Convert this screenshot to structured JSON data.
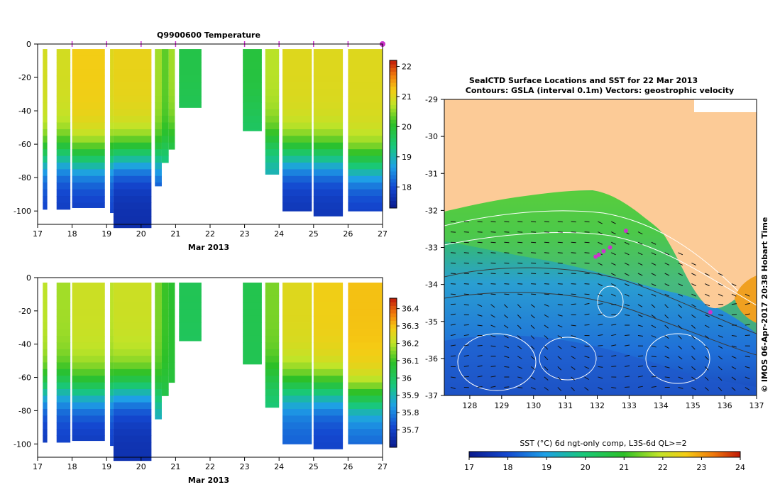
{
  "chart_data": [
    {
      "type": "heatmap",
      "title": "Q9900600  Temperature",
      "xlabel": "Mar 2013",
      "ylabel": "",
      "xlim": [
        17,
        27
      ],
      "ylim": [
        -108,
        0
      ],
      "x_ticks": [
        "17",
        "18",
        "19",
        "20",
        "21",
        "22",
        "23",
        "24",
        "25",
        "26",
        "27"
      ],
      "y_ticks": [
        "0",
        "-20",
        "-40",
        "-60",
        "-80",
        "-100"
      ],
      "colorbar": {
        "min": 17.3,
        "max": 22.2,
        "ticks": [
          "18",
          "19",
          "20",
          "21",
          "22"
        ],
        "tick_values": [
          18,
          19,
          20,
          21,
          22
        ]
      },
      "markers_x": [
        18.0,
        19.0,
        20.0,
        21.0,
        23.0,
        24.0,
        25.0,
        26.0,
        27.0
      ],
      "profiles": [
        {
          "x0": 17.15,
          "x1": 17.28,
          "depth": 96,
          "surface": 20.9,
          "bottom": 17.9,
          "thermo": 63
        },
        {
          "x0": 17.55,
          "x1": 17.95,
          "depth": 96,
          "surface": 20.9,
          "bottom": 17.8,
          "thermo": 62
        },
        {
          "x0": 18.0,
          "x1": 18.95,
          "depth": 95,
          "surface": 21.2,
          "bottom": 17.8,
          "thermo": 64
        },
        {
          "x0": 19.1,
          "x1": 19.2,
          "depth": 98,
          "surface": 21.0,
          "bottom": 17.9,
          "thermo": 63
        },
        {
          "x0": 19.2,
          "x1": 20.3,
          "depth": 107,
          "surface": 21.1,
          "bottom": 17.6,
          "thermo": 62
        },
        {
          "x0": 20.4,
          "x1": 20.6,
          "depth": 82,
          "surface": 20.6,
          "bottom": 17.9,
          "thermo": 64
        },
        {
          "x0": 20.6,
          "x1": 20.8,
          "depth": 68,
          "surface": 20.3,
          "bottom": 18.8,
          "thermo": 60
        },
        {
          "x0": 20.8,
          "x1": 20.98,
          "depth": 60,
          "surface": 20.6,
          "bottom": 19.5,
          "thermo": 50
        },
        {
          "x0": 21.1,
          "x1": 21.75,
          "depth": 35,
          "surface": 19.8,
          "bottom": 19.6,
          "thermo": 30
        },
        {
          "x0": 22.95,
          "x1": 23.5,
          "depth": 49,
          "surface": 19.9,
          "bottom": 19.5,
          "thermo": 35
        },
        {
          "x0": 23.6,
          "x1": 24.0,
          "depth": 75,
          "surface": 20.7,
          "bottom": 18.8,
          "thermo": 55
        },
        {
          "x0": 24.1,
          "x1": 24.95,
          "depth": 97,
          "surface": 21.0,
          "bottom": 17.7,
          "thermo": 62
        },
        {
          "x0": 25.0,
          "x1": 25.85,
          "depth": 100,
          "surface": 21.0,
          "bottom": 17.7,
          "thermo": 63
        },
        {
          "x0": 26.0,
          "x1": 27.0,
          "depth": 97,
          "surface": 21.0,
          "bottom": 17.8,
          "thermo": 68
        }
      ]
    },
    {
      "type": "heatmap",
      "title": "",
      "xlabel": "Mar 2013",
      "ylabel": "",
      "xlim": [
        17,
        27
      ],
      "ylim": [
        -108,
        0
      ],
      "x_ticks": [
        "17",
        "18",
        "19",
        "20",
        "21",
        "22",
        "23",
        "24",
        "25",
        "26",
        "27"
      ],
      "y_ticks": [
        "0",
        "-20",
        "-40",
        "-60",
        "-80",
        "-100"
      ],
      "colorbar": {
        "min": 35.6,
        "max": 36.46,
        "ticks": [
          "35.7",
          "35.8",
          "35.9",
          "36",
          "36.1",
          "36.2",
          "36.3",
          "36.4"
        ],
        "tick_values": [
          35.7,
          35.8,
          35.9,
          36.0,
          36.1,
          36.2,
          36.3,
          36.4
        ]
      },
      "profiles": [
        {
          "x0": 17.15,
          "x1": 17.28,
          "depth": 96,
          "surface": 36.2,
          "bottom": 35.68,
          "thermo": 63
        },
        {
          "x0": 17.55,
          "x1": 17.95,
          "depth": 96,
          "surface": 36.18,
          "bottom": 35.7,
          "thermo": 62
        },
        {
          "x0": 18.0,
          "x1": 18.95,
          "depth": 95,
          "surface": 36.22,
          "bottom": 35.68,
          "thermo": 64
        },
        {
          "x0": 19.1,
          "x1": 19.2,
          "depth": 98,
          "surface": 36.2,
          "bottom": 35.7,
          "thermo": 63
        },
        {
          "x0": 19.2,
          "x1": 20.3,
          "depth": 107,
          "surface": 36.22,
          "bottom": 35.66,
          "thermo": 62
        },
        {
          "x0": 20.4,
          "x1": 20.6,
          "depth": 82,
          "surface": 36.15,
          "bottom": 35.85,
          "thermo": 64
        },
        {
          "x0": 20.6,
          "x1": 20.8,
          "depth": 68,
          "surface": 36.1,
          "bottom": 36.0,
          "thermo": 60
        },
        {
          "x0": 20.8,
          "x1": 20.98,
          "depth": 60,
          "surface": 36.08,
          "bottom": 36.05,
          "thermo": 50
        },
        {
          "x0": 21.1,
          "x1": 21.75,
          "depth": 35,
          "surface": 36.02,
          "bottom": 36.0,
          "thermo": 30
        },
        {
          "x0": 22.95,
          "x1": 23.5,
          "depth": 49,
          "surface": 36.03,
          "bottom": 36.02,
          "thermo": 35
        },
        {
          "x0": 23.6,
          "x1": 24.0,
          "depth": 75,
          "surface": 36.15,
          "bottom": 35.95,
          "thermo": 55
        },
        {
          "x0": 24.1,
          "x1": 24.95,
          "depth": 97,
          "surface": 36.25,
          "bottom": 35.75,
          "thermo": 62
        },
        {
          "x0": 25.0,
          "x1": 25.85,
          "depth": 100,
          "surface": 36.28,
          "bottom": 35.7,
          "thermo": 63
        },
        {
          "x0": 26.0,
          "x1": 27.0,
          "depth": 97,
          "surface": 36.3,
          "bottom": 35.75,
          "thermo": 68
        }
      ]
    },
    {
      "type": "heatmap",
      "title": "SealCTD Surface Locations and SST for 22 Mar 2013",
      "subtitle": "Contours: GSLA (interval 0.1m) Vectors: geostrophic velocity",
      "xlabel": "",
      "ylabel": "",
      "xlim": [
        127.2,
        137.0
      ],
      "ylim": [
        -37,
        -29
      ],
      "x_ticks": [
        "128",
        "129",
        "130",
        "131",
        "132",
        "133",
        "134",
        "135",
        "136",
        "137"
      ],
      "y_ticks": [
        "-29",
        "-30",
        "-31",
        "-32",
        "-33",
        "-34",
        "-35",
        "-36",
        "-37"
      ],
      "colorbar": {
        "label": "SST (°C) 6d ngt-only comp, L3S-6d QL>=2",
        "min": 17,
        "max": 24,
        "ticks": [
          "17",
          "18",
          "19",
          "20",
          "21",
          "22",
          "23",
          "24"
        ],
        "tick_values": [
          17,
          18,
          19,
          20,
          21,
          22,
          23,
          24
        ]
      },
      "seal_locations": [
        [
          131.95,
          -33.25
        ],
        [
          132.05,
          -33.2
        ],
        [
          132.2,
          -33.1
        ],
        [
          132.4,
          -33.0
        ],
        [
          132.9,
          -32.55
        ],
        [
          135.55,
          -34.75
        ]
      ],
      "watermark": "© IMOS 06-Apr-2017 20:38 Hobart Time"
    }
  ],
  "colors": {
    "land": "#fccb97",
    "marker": "#cc33cc",
    "axis": "#000000"
  }
}
